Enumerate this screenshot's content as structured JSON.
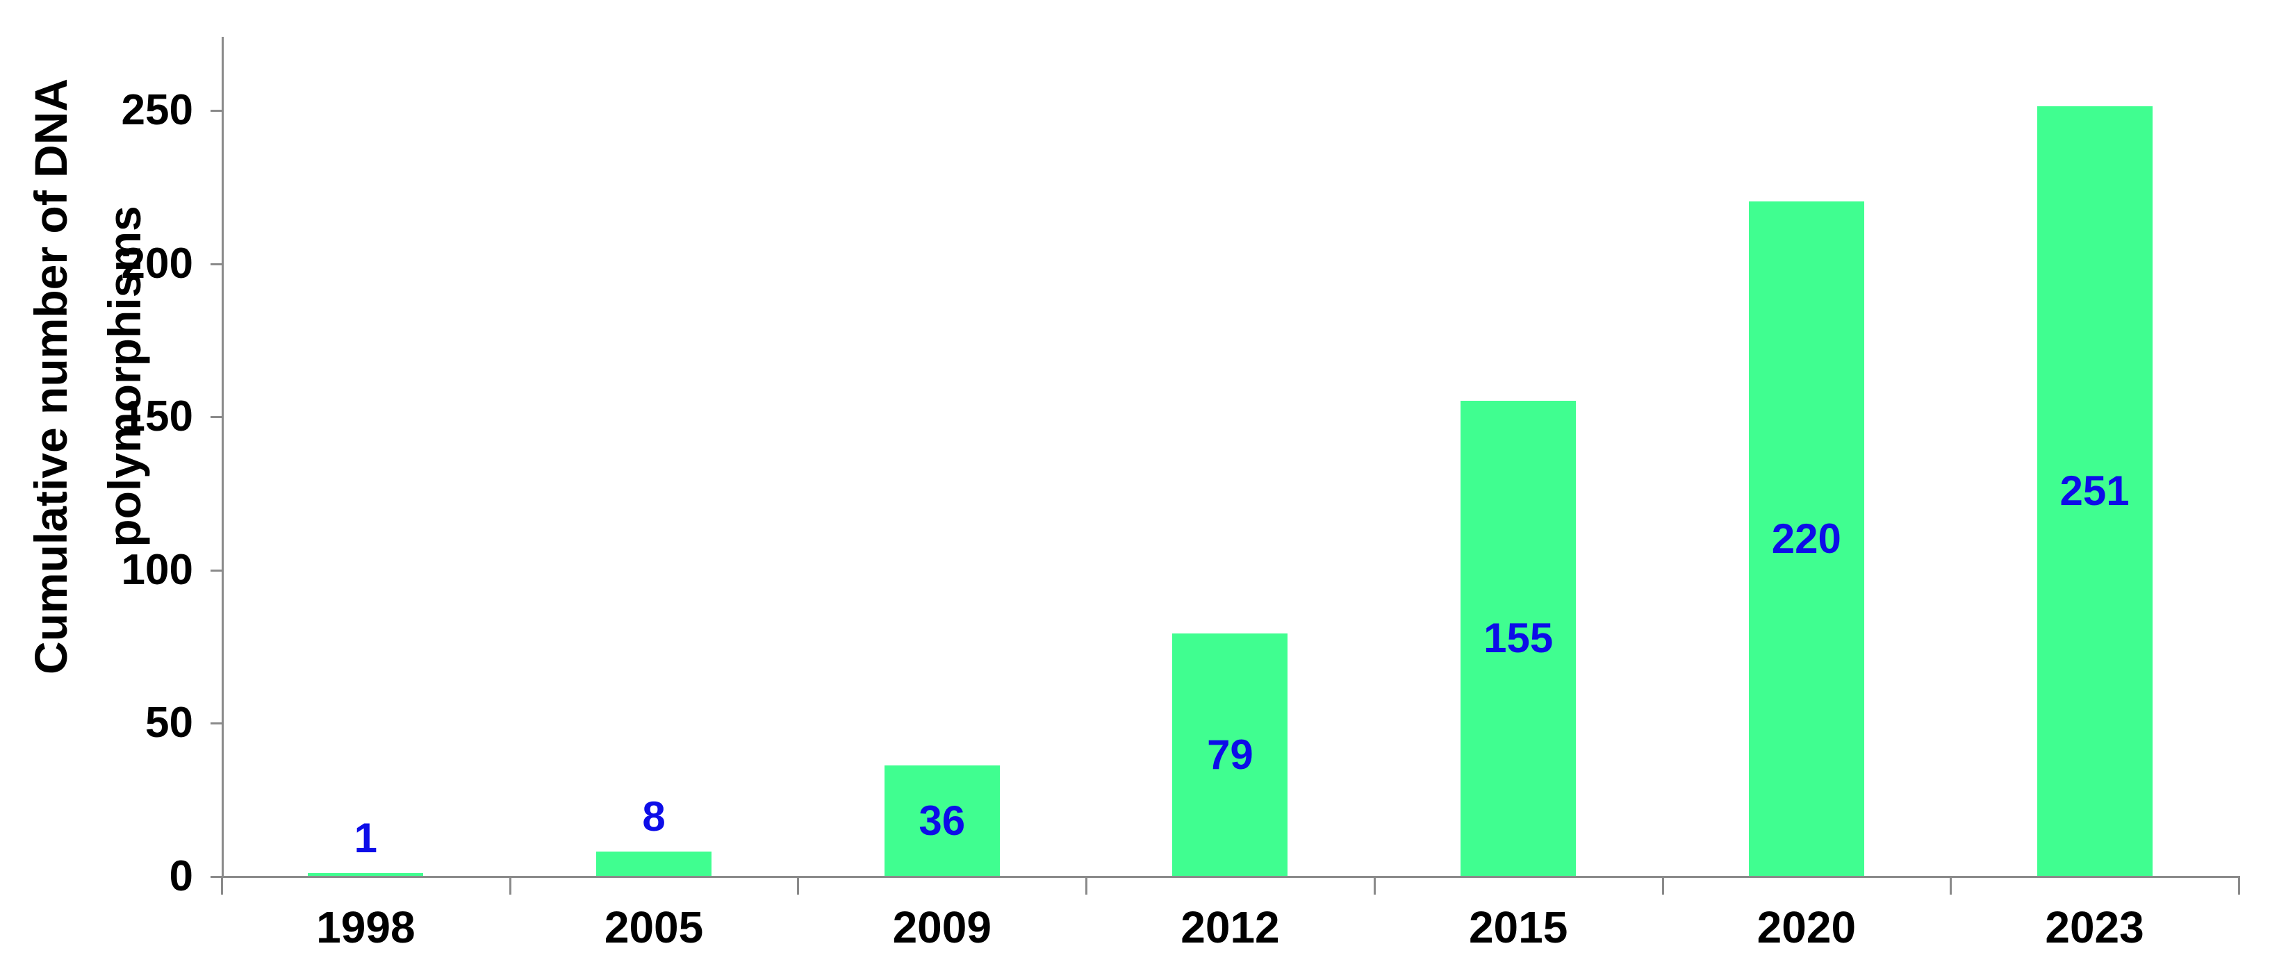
{
  "chart_data": {
    "type": "bar",
    "title": "",
    "ylabel_lines": [
      "Cumulative number of DNA",
      "polymorphisms"
    ],
    "ylabel": "Cumulative number of DNA polymorphisms",
    "xlabel": "",
    "categories": [
      "1998",
      "2005",
      "2009",
      "2012",
      "2015",
      "2020",
      "2023"
    ],
    "values": [
      1,
      8,
      36,
      79,
      155,
      220,
      251
    ],
    "bar_labels": [
      "1",
      "8",
      "36",
      "79",
      "155",
      "220",
      "251"
    ],
    "yticks": [
      0,
      50,
      100,
      150,
      200,
      250
    ],
    "ylim": [
      0,
      273
    ],
    "grid": false,
    "legend_position": "none",
    "colors": {
      "bar_fill": "#40fe90",
      "value_label": "#0d0de8",
      "axis": "#8a8a8a",
      "text": "#000000",
      "background": "#ffffff"
    }
  }
}
